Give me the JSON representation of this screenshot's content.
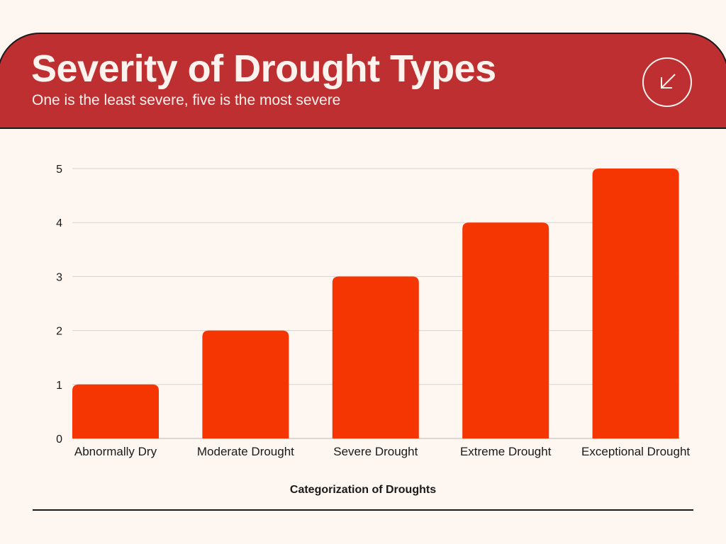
{
  "header": {
    "title": "Severity of Drought Types",
    "subtitle": "One is the least severe, five is the most severe",
    "corner_icon": "arrow-down-left-icon"
  },
  "colors": {
    "header_bg": "#be2f31",
    "bar": "#f53603",
    "background": "#fdf6f1",
    "gridline": "#d9d4d0",
    "text": "#1a1a1a"
  },
  "chart_data": {
    "type": "bar",
    "title": "Severity of Drought Types",
    "subtitle": "One is the least severe, five is the most severe",
    "categories": [
      "Abnormally Dry",
      "Moderate Drought",
      "Severe Drought",
      "Extreme Drought",
      "Exceptional Drought"
    ],
    "values": [
      1,
      2,
      3,
      4,
      5
    ],
    "xlabel": "Categorization of Droughts",
    "ylabel": "",
    "ylim": [
      0,
      5
    ],
    "yticks": [
      0,
      1,
      2,
      3,
      4,
      5
    ],
    "grid": true,
    "legend": "none"
  }
}
